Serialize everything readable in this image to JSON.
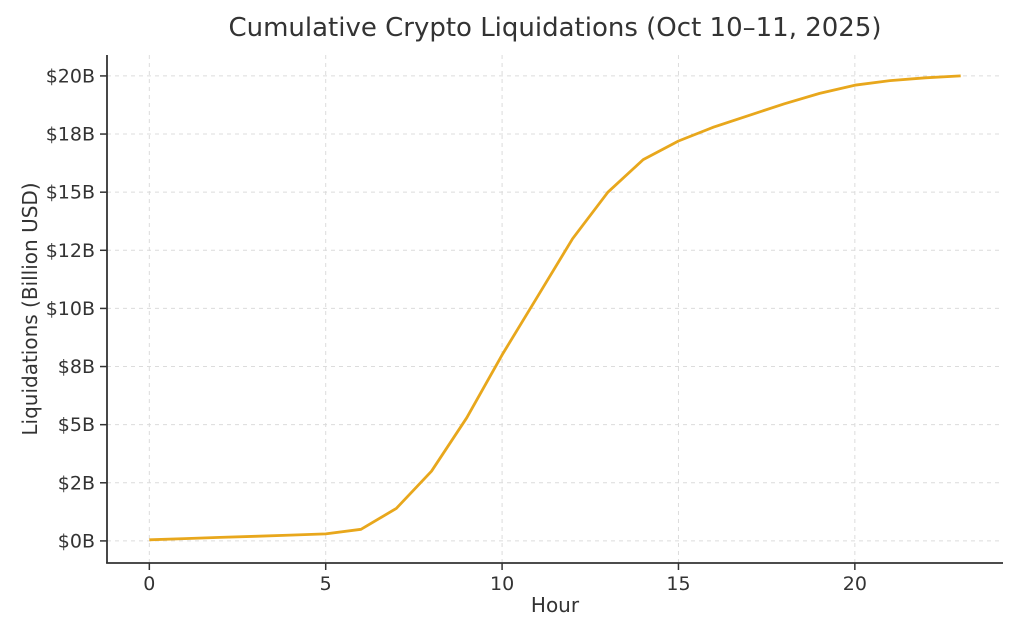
{
  "page": {
    "background": "#ffffff"
  },
  "chart_data": {
    "type": "line",
    "title": "Cumulative Crypto Liquidations (Oct 10–11, 2025)",
    "xlabel": "Hour",
    "ylabel": "Liquidations (Billion USD)",
    "x": [
      0,
      1,
      2,
      3,
      4,
      5,
      6,
      7,
      8,
      9,
      10,
      11,
      12,
      13,
      14,
      15,
      16,
      17,
      18,
      19,
      20,
      21,
      22,
      23
    ],
    "values": [
      0.05,
      0.1,
      0.15,
      0.2,
      0.25,
      0.3,
      0.5,
      1.4,
      3.0,
      5.3,
      8.0,
      10.5,
      13.0,
      15.0,
      16.4,
      17.2,
      17.8,
      18.3,
      18.8,
      19.25,
      19.6,
      19.8,
      19.92,
      20.0
    ],
    "xlim": [
      -1.2,
      24.2
    ],
    "ylim": [
      -0.95,
      20.9
    ],
    "xticks": {
      "positions": [
        0,
        5,
        10,
        15,
        20
      ],
      "labels": [
        "0",
        "5",
        "10",
        "15",
        "20"
      ]
    },
    "yticks": {
      "positions": [
        0,
        2.5,
        5,
        7.5,
        10,
        12.5,
        15,
        17.5,
        20
      ],
      "labels": [
        "$0B",
        "$2B",
        "$5B",
        "$8B",
        "$10B",
        "$12B",
        "$15B",
        "$18B",
        "$20B"
      ]
    },
    "grid": {
      "show": true,
      "color": "#dcdcdc",
      "dash": "4 4"
    },
    "legend": "none",
    "line_color": "#E8A71C",
    "line_width": 2.8,
    "spine_color": "#333333",
    "tick_color": "#333333",
    "text_color": "#333333",
    "tick_fontsize": 19
  }
}
